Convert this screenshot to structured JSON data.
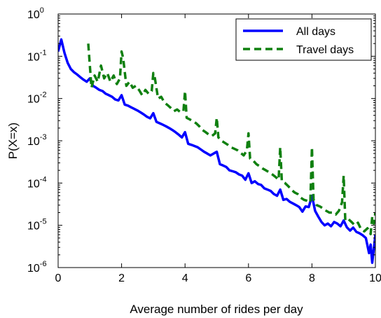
{
  "chart_data": {
    "type": "line",
    "title": "",
    "xlabel": "Average number of rides per day",
    "ylabel": "P(X=x)",
    "xlim": [
      0,
      10
    ],
    "ylim": [
      1e-06,
      1
    ],
    "yscale": "log",
    "grid": false,
    "legend_position": "top-right",
    "x_ticks": [
      "0",
      "2",
      "4",
      "6",
      "8",
      "10"
    ],
    "y_ticks": [
      {
        "base": "10",
        "exp": "0",
        "value": 1
      },
      {
        "base": "10",
        "exp": "-1",
        "value": 0.1
      },
      {
        "base": "10",
        "exp": "-2",
        "value": 0.01
      },
      {
        "base": "10",
        "exp": "-3",
        "value": 0.001
      },
      {
        "base": "10",
        "exp": "-4",
        "value": 0.0001
      },
      {
        "base": "10",
        "exp": "-5",
        "value": 1e-05
      },
      {
        "base": "10",
        "exp": "-6",
        "value": 1e-06
      }
    ],
    "series": [
      {
        "name": "All days",
        "color": "#0000ff",
        "style": "solid",
        "points": [
          [
            0.0,
            0.13
          ],
          [
            0.1,
            0.25
          ],
          [
            0.2,
            0.12
          ],
          [
            0.3,
            0.07
          ],
          [
            0.4,
            0.05
          ],
          [
            0.5,
            0.042
          ],
          [
            0.6,
            0.037
          ],
          [
            0.7,
            0.032
          ],
          [
            0.8,
            0.028
          ],
          [
            0.9,
            0.025
          ],
          [
            1.0,
            0.03
          ],
          [
            1.1,
            0.02
          ],
          [
            1.2,
            0.018
          ],
          [
            1.3,
            0.016
          ],
          [
            1.4,
            0.015
          ],
          [
            1.5,
            0.013
          ],
          [
            1.6,
            0.012
          ],
          [
            1.7,
            0.011
          ],
          [
            1.8,
            0.0095
          ],
          [
            1.9,
            0.009
          ],
          [
            2.0,
            0.012
          ],
          [
            2.1,
            0.0072
          ],
          [
            2.2,
            0.0068
          ],
          [
            2.3,
            0.0062
          ],
          [
            2.4,
            0.0057
          ],
          [
            2.5,
            0.0052
          ],
          [
            2.6,
            0.0047
          ],
          [
            2.7,
            0.0042
          ],
          [
            2.8,
            0.0037
          ],
          [
            2.9,
            0.0034
          ],
          [
            3.0,
            0.0045
          ],
          [
            3.1,
            0.0028
          ],
          [
            3.2,
            0.0026
          ],
          [
            3.3,
            0.0024
          ],
          [
            3.4,
            0.0022
          ],
          [
            3.5,
            0.002
          ],
          [
            3.6,
            0.0018
          ],
          [
            3.7,
            0.0016
          ],
          [
            3.8,
            0.0014
          ],
          [
            3.9,
            0.0012
          ],
          [
            4.0,
            0.0016
          ],
          [
            4.1,
            0.00085
          ],
          [
            4.2,
            0.0008
          ],
          [
            4.3,
            0.00075
          ],
          [
            4.4,
            0.0007
          ],
          [
            4.5,
            0.00062
          ],
          [
            4.6,
            0.00055
          ],
          [
            4.7,
            0.0005
          ],
          [
            4.8,
            0.00045
          ],
          [
            4.9,
            0.0005
          ],
          [
            5.0,
            0.00055
          ],
          [
            5.1,
            0.00028
          ],
          [
            5.2,
            0.00026
          ],
          [
            5.3,
            0.00024
          ],
          [
            5.4,
            0.0002
          ],
          [
            5.5,
            0.00019
          ],
          [
            5.6,
            0.00018
          ],
          [
            5.7,
            0.00016
          ],
          [
            5.8,
            0.00015
          ],
          [
            5.9,
            0.00012
          ],
          [
            6.0,
            0.00017
          ],
          [
            6.1,
            0.0001
          ],
          [
            6.2,
            0.00011
          ],
          [
            6.3,
            9.5e-05
          ],
          [
            6.4,
            9e-05
          ],
          [
            6.5,
            7.5e-05
          ],
          [
            6.6,
            7e-05
          ],
          [
            6.7,
            6.5e-05
          ],
          [
            6.8,
            5.5e-05
          ],
          [
            6.9,
            5e-05
          ],
          [
            7.0,
            7e-05
          ],
          [
            7.1,
            4e-05
          ],
          [
            7.2,
            4.2e-05
          ],
          [
            7.3,
            3.6e-05
          ],
          [
            7.4,
            3.3e-05
          ],
          [
            7.5,
            3e-05
          ],
          [
            7.6,
            2.7e-05
          ],
          [
            7.7,
            2.1e-05
          ],
          [
            7.8,
            2.8e-05
          ],
          [
            7.9,
            2.7e-05
          ],
          [
            8.0,
            5e-05
          ],
          [
            8.1,
            2.2e-05
          ],
          [
            8.2,
            1.6e-05
          ],
          [
            8.3,
            1.2e-05
          ],
          [
            8.4,
            1e-05
          ],
          [
            8.5,
            1.1e-05
          ],
          [
            8.6,
            9.5e-06
          ],
          [
            8.7,
            1.2e-05
          ],
          [
            8.8,
            1.1e-05
          ],
          [
            8.9,
            9.5e-06
          ],
          [
            9.0,
            1.3e-05
          ],
          [
            9.1,
            9e-06
          ],
          [
            9.2,
            7.5e-06
          ],
          [
            9.3,
            8.8e-06
          ],
          [
            9.4,
            7e-06
          ],
          [
            9.5,
            6.5e-06
          ],
          [
            9.6,
            5.8e-06
          ],
          [
            9.7,
            5e-06
          ],
          [
            9.8,
            2.2e-06
          ],
          [
            9.85,
            3.5e-06
          ],
          [
            9.9,
            1.3e-06
          ],
          [
            10.0,
            6e-06
          ]
        ]
      },
      {
        "name": "Travel days",
        "color": "#108010",
        "style": "dashed",
        "points": [
          [
            0.95,
            0.2
          ],
          [
            1.05,
            0.018
          ],
          [
            1.15,
            0.035
          ],
          [
            1.25,
            0.025
          ],
          [
            1.35,
            0.06
          ],
          [
            1.45,
            0.03
          ],
          [
            1.55,
            0.04
          ],
          [
            1.65,
            0.025
          ],
          [
            1.75,
            0.035
          ],
          [
            1.85,
            0.022
          ],
          [
            1.95,
            0.03
          ],
          [
            2.0,
            0.13
          ],
          [
            2.05,
            0.09
          ],
          [
            2.15,
            0.02
          ],
          [
            2.25,
            0.025
          ],
          [
            2.35,
            0.018
          ],
          [
            2.45,
            0.02
          ],
          [
            2.55,
            0.016
          ],
          [
            2.65,
            0.012
          ],
          [
            2.75,
            0.016
          ],
          [
            2.85,
            0.013
          ],
          [
            2.95,
            0.015
          ],
          [
            3.0,
            0.04
          ],
          [
            3.05,
            0.03
          ],
          [
            3.15,
            0.01
          ],
          [
            3.25,
            0.011
          ],
          [
            3.35,
            0.008
          ],
          [
            3.45,
            0.007
          ],
          [
            3.55,
            0.006
          ],
          [
            3.65,
            0.005
          ],
          [
            3.75,
            0.0055
          ],
          [
            3.85,
            0.0048
          ],
          [
            3.95,
            0.005
          ],
          [
            4.0,
            0.015
          ],
          [
            4.05,
            0.0035
          ],
          [
            4.15,
            0.0032
          ],
          [
            4.25,
            0.0029
          ],
          [
            4.35,
            0.0026
          ],
          [
            4.45,
            0.0022
          ],
          [
            4.55,
            0.0018
          ],
          [
            4.65,
            0.0016
          ],
          [
            4.75,
            0.0014
          ],
          [
            4.85,
            0.0013
          ],
          [
            4.95,
            0.0015
          ],
          [
            5.0,
            0.0035
          ],
          [
            5.05,
            0.0012
          ],
          [
            5.15,
            0.001
          ],
          [
            5.25,
            0.0009
          ],
          [
            5.35,
            0.0008
          ],
          [
            5.45,
            0.0007
          ],
          [
            5.55,
            0.00065
          ],
          [
            5.65,
            0.0006
          ],
          [
            5.75,
            0.00052
          ],
          [
            5.85,
            0.00045
          ],
          [
            5.95,
            0.0006
          ],
          [
            6.0,
            0.0015
          ],
          [
            6.05,
            0.00038
          ],
          [
            6.15,
            0.00034
          ],
          [
            6.25,
            0.00028
          ],
          [
            6.35,
            0.00025
          ],
          [
            6.45,
            0.00022
          ],
          [
            6.55,
            0.0002
          ],
          [
            6.65,
            0.00018
          ],
          [
            6.75,
            0.00016
          ],
          [
            6.85,
            0.00014
          ],
          [
            6.95,
            0.00012
          ],
          [
            7.0,
            0.0007
          ],
          [
            7.05,
            0.00011
          ],
          [
            7.15,
            0.0001
          ],
          [
            7.25,
            8.5e-05
          ],
          [
            7.35,
            7e-05
          ],
          [
            7.45,
            6e-05
          ],
          [
            7.55,
            5.5e-05
          ],
          [
            7.65,
            4.5e-05
          ],
          [
            7.75,
            4e-05
          ],
          [
            7.85,
            3.8e-05
          ],
          [
            7.95,
            3.5e-05
          ],
          [
            8.0,
            0.0007
          ],
          [
            8.05,
            4e-05
          ],
          [
            8.15,
            3e-05
          ],
          [
            8.25,
            2.8e-05
          ],
          [
            8.35,
            2.5e-05
          ],
          [
            8.45,
            2.2e-05
          ],
          [
            8.55,
            2e-05
          ],
          [
            8.65,
            2e-05
          ],
          [
            8.75,
            1.8e-05
          ],
          [
            8.85,
            2.2e-05
          ],
          [
            8.95,
            3.5e-05
          ],
          [
            9.0,
            0.00015
          ],
          [
            9.05,
            1.3e-05
          ],
          [
            9.15,
            1.4e-05
          ],
          [
            9.25,
            1.2e-05
          ],
          [
            9.35,
            1e-05
          ],
          [
            9.45,
            1.15e-05
          ],
          [
            9.55,
            8e-06
          ],
          [
            9.65,
            7.2e-06
          ],
          [
            9.75,
            8.5e-06
          ],
          [
            9.85,
            6.2e-06
          ],
          [
            9.9,
            1.6e-05
          ],
          [
            9.95,
            1.1e-05
          ],
          [
            10.0,
            2e-05
          ]
        ]
      }
    ]
  }
}
